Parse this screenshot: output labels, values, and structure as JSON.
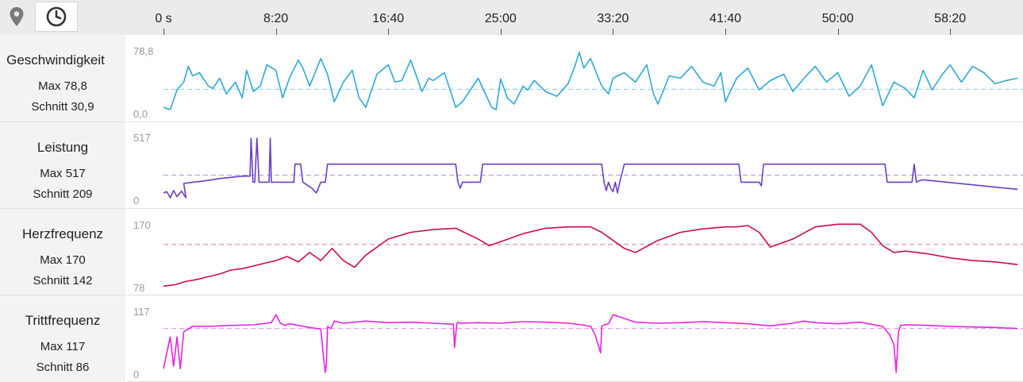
{
  "toolbar": {
    "map_icon": "map-pin-icon",
    "time_icon": "clock-icon"
  },
  "time_axis": {
    "labels": [
      "0 s",
      "8:20",
      "16:40",
      "25:00",
      "33:20",
      "41:40",
      "50:00",
      "58:20"
    ],
    "values_s": [
      0,
      500,
      1000,
      1500,
      2000,
      2500,
      3000,
      3500
    ]
  },
  "panels": [
    {
      "title": "Geschwindigkeit",
      "max_text": "Max 78,8",
      "avg_text": "Schnitt 30,9"
    },
    {
      "title": "Leistung",
      "max_text": "Max 517",
      "avg_text": "Schnitt 209"
    },
    {
      "title": "Herzfrequenz",
      "max_text": "Max 170",
      "avg_text": "Schnitt 142"
    },
    {
      "title": "Trittfrequenz",
      "max_text": "Max 117",
      "avg_text": "Schnitt 86"
    }
  ],
  "chart_data": [
    {
      "type": "line",
      "color": "#2ea8d5",
      "xlim": [
        0,
        3800
      ],
      "ylim": [
        0,
        78.8
      ],
      "y_tick_labels": [
        "78,8",
        "0,0"
      ],
      "mean": 30.9,
      "x": [
        0,
        30,
        60,
        90,
        110,
        130,
        160,
        200,
        220,
        250,
        280,
        320,
        350,
        370,
        400,
        430,
        460,
        500,
        530,
        560,
        600,
        620,
        650,
        700,
        730,
        760,
        800,
        840,
        870,
        900,
        950,
        1000,
        1030,
        1060,
        1100,
        1150,
        1180,
        1200,
        1250,
        1300,
        1330,
        1400,
        1460,
        1480,
        1500,
        1530,
        1560,
        1600,
        1620,
        1650,
        1700,
        1750,
        1800,
        1830,
        1850,
        1870,
        1900,
        1950,
        1980,
        2000,
        2050,
        2100,
        2150,
        2180,
        2200,
        2250,
        2300,
        2350,
        2400,
        2450,
        2480,
        2500,
        2550,
        2600,
        2650,
        2700,
        2760,
        2800,
        2850,
        2900,
        2950,
        3000,
        3050,
        3100,
        3150,
        3200,
        3250,
        3300,
        3340,
        3380,
        3420,
        3460,
        3500,
        3550,
        3600,
        3650,
        3700,
        3750,
        3800
      ],
      "y": [
        8,
        5,
        30,
        40,
        60,
        48,
        52,
        35,
        32,
        45,
        25,
        40,
        20,
        55,
        28,
        35,
        62,
        55,
        20,
        45,
        68,
        58,
        35,
        70,
        50,
        15,
        40,
        55,
        20,
        8,
        50,
        62,
        40,
        42,
        68,
        28,
        45,
        42,
        52,
        8,
        15,
        45,
        8,
        5,
        44,
        20,
        12,
        35,
        30,
        42,
        28,
        22,
        38,
        60,
        78,
        58,
        70,
        35,
        25,
        45,
        52,
        40,
        62,
        25,
        12,
        48,
        45,
        60,
        40,
        35,
        52,
        15,
        45,
        58,
        30,
        42,
        50,
        28,
        45,
        60,
        40,
        52,
        22,
        35,
        62,
        10,
        40,
        32,
        20,
        55,
        30,
        48,
        62,
        40,
        60,
        52,
        38,
        42,
        45
      ]
    },
    {
      "type": "line",
      "color": "#6a3fc4",
      "xlim": [
        0,
        3800
      ],
      "ylim": [
        0,
        517
      ],
      "y_tick_labels": [
        "517",
        "0"
      ],
      "mean": 209,
      "x": [
        0,
        15,
        30,
        45,
        60,
        80,
        100,
        90,
        115,
        130,
        160,
        200,
        250,
        300,
        350,
        385,
        390,
        398,
        406,
        416,
        425,
        430,
        440,
        450,
        460,
        470,
        475,
        480,
        485,
        490,
        505,
        510,
        520,
        540,
        575,
        580,
        585,
        590,
        600,
        610,
        620,
        660,
        680,
        700,
        720,
        730,
        1300,
        1310,
        1320,
        1330,
        1410,
        1420,
        1430,
        1950,
        1960,
        1970,
        1980,
        1990,
        2000,
        2010,
        2020,
        2030,
        2050,
        2060,
        2560,
        2570,
        2580,
        2600,
        2650,
        2660,
        2670,
        3210,
        3220,
        3230,
        3300,
        3330,
        3340,
        3350,
        3360,
        3380,
        3800
      ],
      "y": [
        60,
        70,
        20,
        80,
        30,
        75,
        20,
        140,
        145,
        150,
        155,
        165,
        180,
        190,
        200,
        200,
        517,
        150,
        150,
        517,
        150,
        150,
        150,
        150,
        150,
        150,
        517,
        150,
        150,
        150,
        150,
        150,
        150,
        150,
        150,
        150,
        300,
        300,
        300,
        300,
        150,
        100,
        60,
        150,
        150,
        300,
        300,
        150,
        100,
        150,
        150,
        300,
        300,
        300,
        150,
        80,
        150,
        100,
        70,
        150,
        60,
        150,
        300,
        300,
        300,
        150,
        150,
        150,
        150,
        120,
        300,
        300,
        150,
        150,
        150,
        150,
        300,
        150,
        160,
        170,
        90
      ]
    },
    {
      "type": "line",
      "color": "#cc0a4f",
      "xlim": [
        0,
        3800
      ],
      "ylim": [
        78,
        170
      ],
      "y_tick_labels": [
        "170",
        "78"
      ],
      "mean": 142,
      "x": [
        0,
        50,
        100,
        150,
        200,
        250,
        300,
        350,
        400,
        450,
        500,
        550,
        600,
        650,
        700,
        750,
        800,
        850,
        900,
        1000,
        1100,
        1200,
        1300,
        1350,
        1400,
        1450,
        1500,
        1600,
        1700,
        1800,
        1900,
        1950,
        2000,
        2050,
        2100,
        2200,
        2300,
        2400,
        2500,
        2550,
        2600,
        2650,
        2700,
        2800,
        2900,
        3000,
        3100,
        3150,
        3200,
        3250,
        3300,
        3400,
        3500,
        3600,
        3700,
        3800
      ],
      "y": [
        80,
        82,
        87,
        90,
        94,
        98,
        104,
        106,
        110,
        114,
        118,
        124,
        116,
        130,
        118,
        136,
        118,
        108,
        126,
        150,
        160,
        164,
        166,
        158,
        150,
        140,
        146,
        158,
        166,
        168,
        168,
        160,
        148,
        136,
        130,
        148,
        160,
        165,
        168,
        168,
        170,
        160,
        138,
        150,
        168,
        172,
        172,
        160,
        140,
        130,
        132,
        128,
        122,
        118,
        116,
        112
      ]
    },
    {
      "type": "line",
      "color": "#e522e0",
      "xlim": [
        0,
        3800
      ],
      "ylim": [
        0,
        117
      ],
      "y_tick_labels": [
        "117",
        "0"
      ],
      "mean": 86,
      "x": [
        0,
        15,
        30,
        45,
        60,
        75,
        90,
        110,
        130,
        200,
        300,
        400,
        480,
        500,
        520,
        540,
        560,
        600,
        650,
        700,
        715,
        720,
        725,
        730,
        735,
        745,
        760,
        800,
        900,
        1000,
        1100,
        1200,
        1290,
        1295,
        1305,
        1310,
        1320,
        1400,
        1500,
        1600,
        1700,
        1800,
        1860,
        1900,
        1920,
        1945,
        1950,
        1960,
        1980,
        2000,
        2100,
        2200,
        2300,
        2400,
        2500,
        2600,
        2700,
        2800,
        2850,
        2900,
        3000,
        3100,
        3200,
        3230,
        3250,
        3260,
        3270,
        3280,
        3300,
        3400,
        3500,
        3600,
        3700,
        3800
      ],
      "y": [
        10,
        40,
        70,
        15,
        70,
        10,
        80,
        85,
        90,
        90,
        92,
        93,
        97,
        112,
        96,
        92,
        95,
        92,
        88,
        85,
        20,
        3,
        20,
        90,
        88,
        86,
        100,
        96,
        100,
        97,
        98,
        96,
        94,
        50,
        95,
        98,
        96,
        97,
        96,
        99,
        98,
        96,
        93,
        90,
        75,
        40,
        90,
        93,
        95,
        112,
        98,
        96,
        97,
        99,
        97,
        95,
        91,
        96,
        100,
        97,
        95,
        98,
        90,
        75,
        55,
        3,
        80,
        92,
        93,
        92,
        90,
        89,
        88,
        86
      ]
    }
  ]
}
